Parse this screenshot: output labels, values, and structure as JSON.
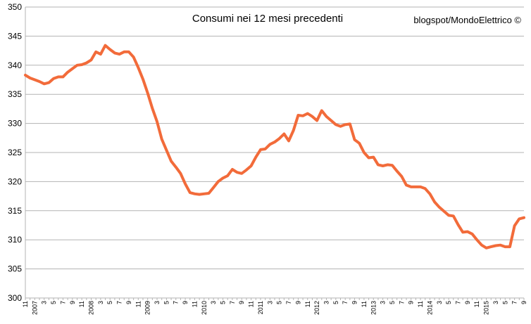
{
  "chart_data": {
    "type": "line",
    "title": "Consumi nei 12 mesi precedenti",
    "annotation": "blogspot/MondoElettrico ©",
    "xlabel": "",
    "ylabel": "",
    "ylim": [
      300,
      350
    ],
    "yticks": [
      300,
      305,
      310,
      315,
      320,
      325,
      330,
      335,
      340,
      345,
      350
    ],
    "grid": true,
    "legend": "none",
    "line_color": "#f26b3a",
    "x_start": "2006-11",
    "x_tick_labels": [
      "11",
      "2007",
      "3",
      "5",
      "7",
      "9",
      "11",
      "2008",
      "3",
      "5",
      "7",
      "9",
      "11",
      "2009",
      "3",
      "5",
      "7",
      "9",
      "11",
      "2010",
      "3",
      "5",
      "7",
      "9",
      "11",
      "2011",
      "3",
      "5",
      "7",
      "9",
      "11",
      "2012",
      "3",
      "5",
      "7",
      "9",
      "11",
      "2013",
      "3",
      "5",
      "7",
      "9",
      "11",
      "2014",
      "3",
      "5",
      "7",
      "9",
      "11",
      "2015",
      "3",
      "5",
      "7",
      "9"
    ],
    "series": [
      {
        "values": [
          338.3,
          337.8,
          337.5,
          337.2,
          336.8,
          337.0,
          337.7,
          338.0,
          338.0,
          338.8,
          339.4,
          340.0,
          340.1,
          340.4,
          340.9,
          342.3,
          341.9,
          343.4,
          342.7,
          342.1,
          341.9,
          342.3,
          342.3,
          341.4,
          339.6,
          337.6,
          335.2,
          332.6,
          330.3,
          327.3,
          325.4,
          323.5,
          322.5,
          321.4,
          319.6,
          318.1,
          317.9,
          317.8,
          317.9,
          318.0,
          319.0,
          320.0,
          320.6,
          321.0,
          322.1,
          321.6,
          321.4,
          322.0,
          322.7,
          324.2,
          325.5,
          325.6,
          326.4,
          326.8,
          327.4,
          328.2,
          327.0,
          328.8,
          331.4,
          331.3,
          331.7,
          331.2,
          330.5,
          332.2,
          331.2,
          330.5,
          329.8,
          329.5,
          329.8,
          329.9,
          327.2,
          326.6,
          325.0,
          324.1,
          324.2,
          322.9,
          322.7,
          322.9,
          322.8,
          321.8,
          320.9,
          319.4,
          319.1,
          319.1,
          319.1,
          318.8,
          317.9,
          316.5,
          315.6,
          314.9,
          314.2,
          314.1,
          312.6,
          311.3,
          311.4,
          311.0,
          310.0,
          309.1,
          308.6,
          308.8,
          309.0,
          309.1,
          308.8,
          308.8,
          312.4,
          313.6,
          313.8
        ]
      }
    ]
  }
}
